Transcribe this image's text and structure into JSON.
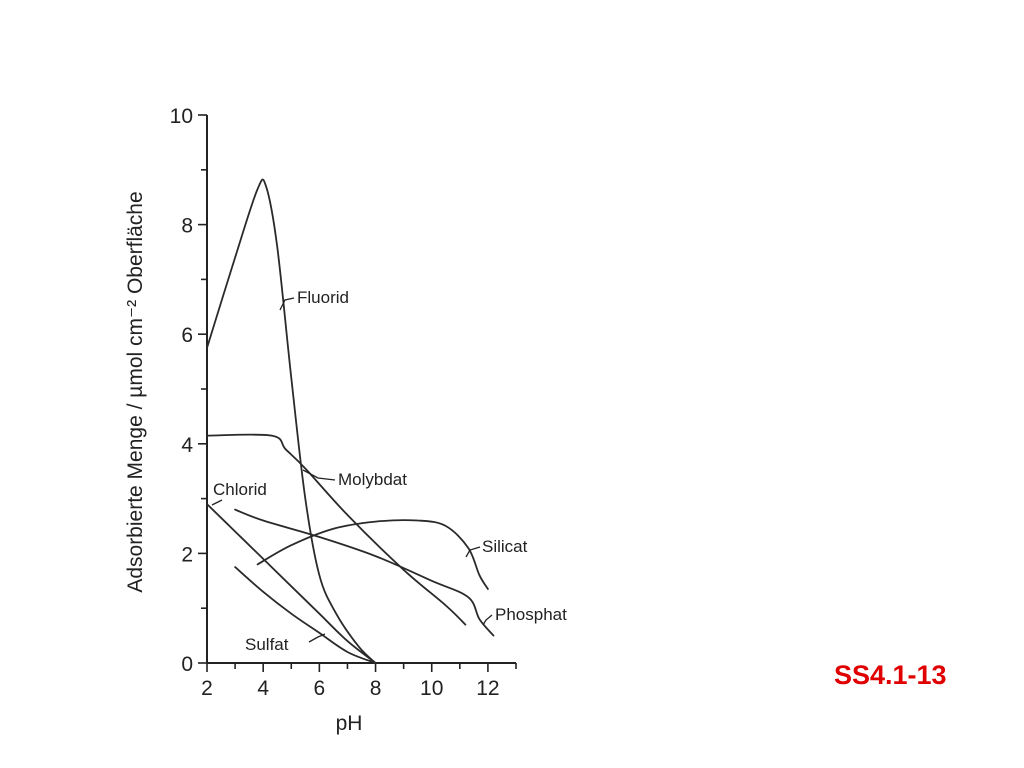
{
  "slide_id": "SS4.1-13",
  "chart_data": {
    "type": "line",
    "xlabel": "pH",
    "ylabel": "Adsorbierte Menge / µmol cm⁻² Oberfläche",
    "xlim": [
      2,
      13
    ],
    "ylim": [
      0,
      10
    ],
    "x_ticks": [
      2,
      4,
      6,
      8,
      10,
      12
    ],
    "y_ticks": [
      0,
      2,
      4,
      6,
      8,
      10
    ],
    "grid": false,
    "legend": "none",
    "series": [
      {
        "name": "Fluorid",
        "points": [
          [
            2.0,
            5.75
          ],
          [
            3.0,
            7.4
          ],
          [
            3.8,
            8.65
          ],
          [
            4.1,
            8.7
          ],
          [
            4.5,
            7.6
          ],
          [
            5.0,
            5.2
          ],
          [
            5.5,
            3.0
          ],
          [
            6.0,
            1.6
          ],
          [
            6.6,
            0.9
          ],
          [
            7.4,
            0.3
          ],
          [
            8.0,
            0.0
          ]
        ]
      },
      {
        "name": "Molybdat",
        "points": [
          [
            2.0,
            4.15
          ],
          [
            4.3,
            4.15
          ],
          [
            4.8,
            3.9
          ],
          [
            5.5,
            3.55
          ],
          [
            7.0,
            2.7
          ],
          [
            9.0,
            1.7
          ],
          [
            10.5,
            1.05
          ],
          [
            11.2,
            0.7
          ]
        ]
      },
      {
        "name": "Chlorid",
        "points": [
          [
            2.0,
            2.9
          ],
          [
            3.0,
            2.4
          ],
          [
            4.0,
            1.9
          ],
          [
            5.0,
            1.4
          ],
          [
            6.0,
            0.9
          ],
          [
            7.0,
            0.4
          ],
          [
            8.0,
            0.0
          ]
        ]
      },
      {
        "name": "Silicat",
        "points": [
          [
            3.8,
            1.8
          ],
          [
            5.0,
            2.15
          ],
          [
            6.5,
            2.45
          ],
          [
            8.0,
            2.58
          ],
          [
            9.5,
            2.6
          ],
          [
            10.5,
            2.5
          ],
          [
            11.3,
            2.1
          ],
          [
            11.7,
            1.6
          ],
          [
            12.0,
            1.35
          ]
        ]
      },
      {
        "name": "Phosphat",
        "points": [
          [
            3.0,
            2.8
          ],
          [
            4.0,
            2.6
          ],
          [
            6.0,
            2.3
          ],
          [
            8.0,
            1.95
          ],
          [
            10.0,
            1.5
          ],
          [
            11.3,
            1.2
          ],
          [
            11.7,
            0.8
          ],
          [
            12.2,
            0.5
          ]
        ]
      },
      {
        "name": "Sulfat",
        "points": [
          [
            3.0,
            1.75
          ],
          [
            4.0,
            1.3
          ],
          [
            5.0,
            0.9
          ],
          [
            6.0,
            0.55
          ],
          [
            7.0,
            0.2
          ],
          [
            8.0,
            0.0
          ]
        ]
      }
    ]
  }
}
